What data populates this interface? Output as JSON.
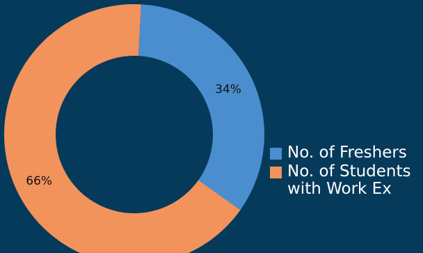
{
  "chart_data": {
    "type": "pie",
    "subtype": "donut",
    "categories": [
      "No. of Freshers",
      "No. of Students with Work Ex"
    ],
    "values": [
      34,
      66
    ],
    "data_labels": [
      "34%",
      "66%"
    ],
    "colors": [
      "#4a8ed0",
      "#f2935b"
    ],
    "legend": {
      "position": "right",
      "entries": [
        "No. of Freshers",
        "No. of Students with Work Ex"
      ]
    }
  }
}
